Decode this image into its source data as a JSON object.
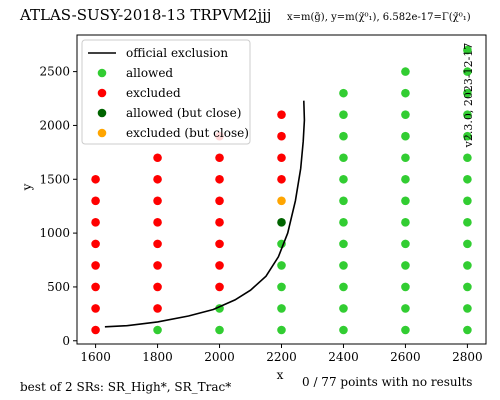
{
  "chart_data": {
    "type": "scatter",
    "title": "ATLAS-SUSY-2018-13  TRPVM2jjj",
    "subtitle": "x=m(g̃), y=m(χ̃⁰₁), 6.582e-17=Γ(χ̃⁰₁)",
    "xlabel": "x",
    "ylabel": "y",
    "xlim": [
      1540,
      2860
    ],
    "ylim": [
      -30,
      2840
    ],
    "xticks": [
      1600,
      1800,
      2000,
      2200,
      2400,
      2600,
      2800
    ],
    "yticks": [
      0,
      500,
      1000,
      1500,
      2000,
      2500
    ],
    "grid": false,
    "legend_position": "top-left",
    "footer_left": "best of 2 SRs: SR_High*, SR_Trac*",
    "footer_right": "0 / 77 points with no results",
    "watermark": "v2.3.0, 2023-12-17",
    "colors": {
      "allowed": "#32cd32",
      "excluded": "#ff0000",
      "allowed_close": "#006400",
      "excluded_close": "#ffa500",
      "line": "#000000",
      "watermark": "#999999"
    },
    "legend": [
      {
        "label": "official exclusion",
        "kind": "line",
        "color_key": "line"
      },
      {
        "label": "allowed",
        "kind": "marker",
        "color_key": "allowed"
      },
      {
        "label": "excluded",
        "kind": "marker",
        "color_key": "excluded"
      },
      {
        "label": "allowed (but close)",
        "kind": "marker",
        "color_key": "allowed_close"
      },
      {
        "label": "excluded (but close)",
        "kind": "marker",
        "color_key": "excluded_close"
      }
    ],
    "series": [
      {
        "name": "allowed",
        "points": [
          [
            1800,
            100
          ],
          [
            2000,
            100
          ],
          [
            2000,
            300
          ],
          [
            2200,
            100
          ],
          [
            2200,
            300
          ],
          [
            2200,
            500
          ],
          [
            2200,
            700
          ],
          [
            2200,
            900
          ],
          [
            2400,
            100
          ],
          [
            2400,
            300
          ],
          [
            2400,
            500
          ],
          [
            2400,
            700
          ],
          [
            2400,
            900
          ],
          [
            2400,
            1100
          ],
          [
            2400,
            1300
          ],
          [
            2400,
            1500
          ],
          [
            2400,
            1700
          ],
          [
            2400,
            1900
          ],
          [
            2400,
            2100
          ],
          [
            2400,
            2300
          ],
          [
            2600,
            100
          ],
          [
            2600,
            300
          ],
          [
            2600,
            500
          ],
          [
            2600,
            700
          ],
          [
            2600,
            900
          ],
          [
            2600,
            1100
          ],
          [
            2600,
            1300
          ],
          [
            2600,
            1500
          ],
          [
            2600,
            1700
          ],
          [
            2600,
            1900
          ],
          [
            2600,
            2100
          ],
          [
            2600,
            2300
          ],
          [
            2600,
            2500
          ],
          [
            2800,
            100
          ],
          [
            2800,
            300
          ],
          [
            2800,
            500
          ],
          [
            2800,
            700
          ],
          [
            2800,
            900
          ],
          [
            2800,
            1100
          ],
          [
            2800,
            1300
          ],
          [
            2800,
            1500
          ],
          [
            2800,
            1700
          ],
          [
            2800,
            1900
          ],
          [
            2800,
            2100
          ],
          [
            2800,
            2300
          ],
          [
            2800,
            2500
          ],
          [
            2800,
            2700
          ]
        ]
      },
      {
        "name": "excluded",
        "points": [
          [
            1600,
            100
          ],
          [
            1600,
            300
          ],
          [
            1600,
            500
          ],
          [
            1600,
            700
          ],
          [
            1600,
            900
          ],
          [
            1600,
            1100
          ],
          [
            1600,
            1300
          ],
          [
            1600,
            1500
          ],
          [
            1800,
            300
          ],
          [
            1800,
            500
          ],
          [
            1800,
            700
          ],
          [
            1800,
            900
          ],
          [
            1800,
            1100
          ],
          [
            1800,
            1300
          ],
          [
            1800,
            1500
          ],
          [
            1800,
            1700
          ],
          [
            2000,
            500
          ],
          [
            2000,
            700
          ],
          [
            2000,
            900
          ],
          [
            2000,
            1100
          ],
          [
            2000,
            1300
          ],
          [
            2000,
            1500
          ],
          [
            2000,
            1700
          ],
          [
            2000,
            1900
          ],
          [
            2200,
            1500
          ],
          [
            2200,
            1700
          ],
          [
            2200,
            1900
          ],
          [
            2200,
            2100
          ]
        ]
      },
      {
        "name": "allowed (but close)",
        "points": [
          [
            2200,
            1100
          ]
        ]
      },
      {
        "name": "excluded (but close)",
        "points": [
          [
            2200,
            1300
          ]
        ]
      }
    ],
    "exclusion_line": [
      [
        1630,
        130
      ],
      [
        1700,
        140
      ],
      [
        1800,
        175
      ],
      [
        1900,
        230
      ],
      [
        1980,
        290
      ],
      [
        2050,
        380
      ],
      [
        2100,
        470
      ],
      [
        2150,
        600
      ],
      [
        2190,
        780
      ],
      [
        2220,
        1000
      ],
      [
        2245,
        1300
      ],
      [
        2262,
        1600
      ],
      [
        2270,
        1850
      ],
      [
        2274,
        2050
      ],
      [
        2272,
        2230
      ]
    ]
  }
}
